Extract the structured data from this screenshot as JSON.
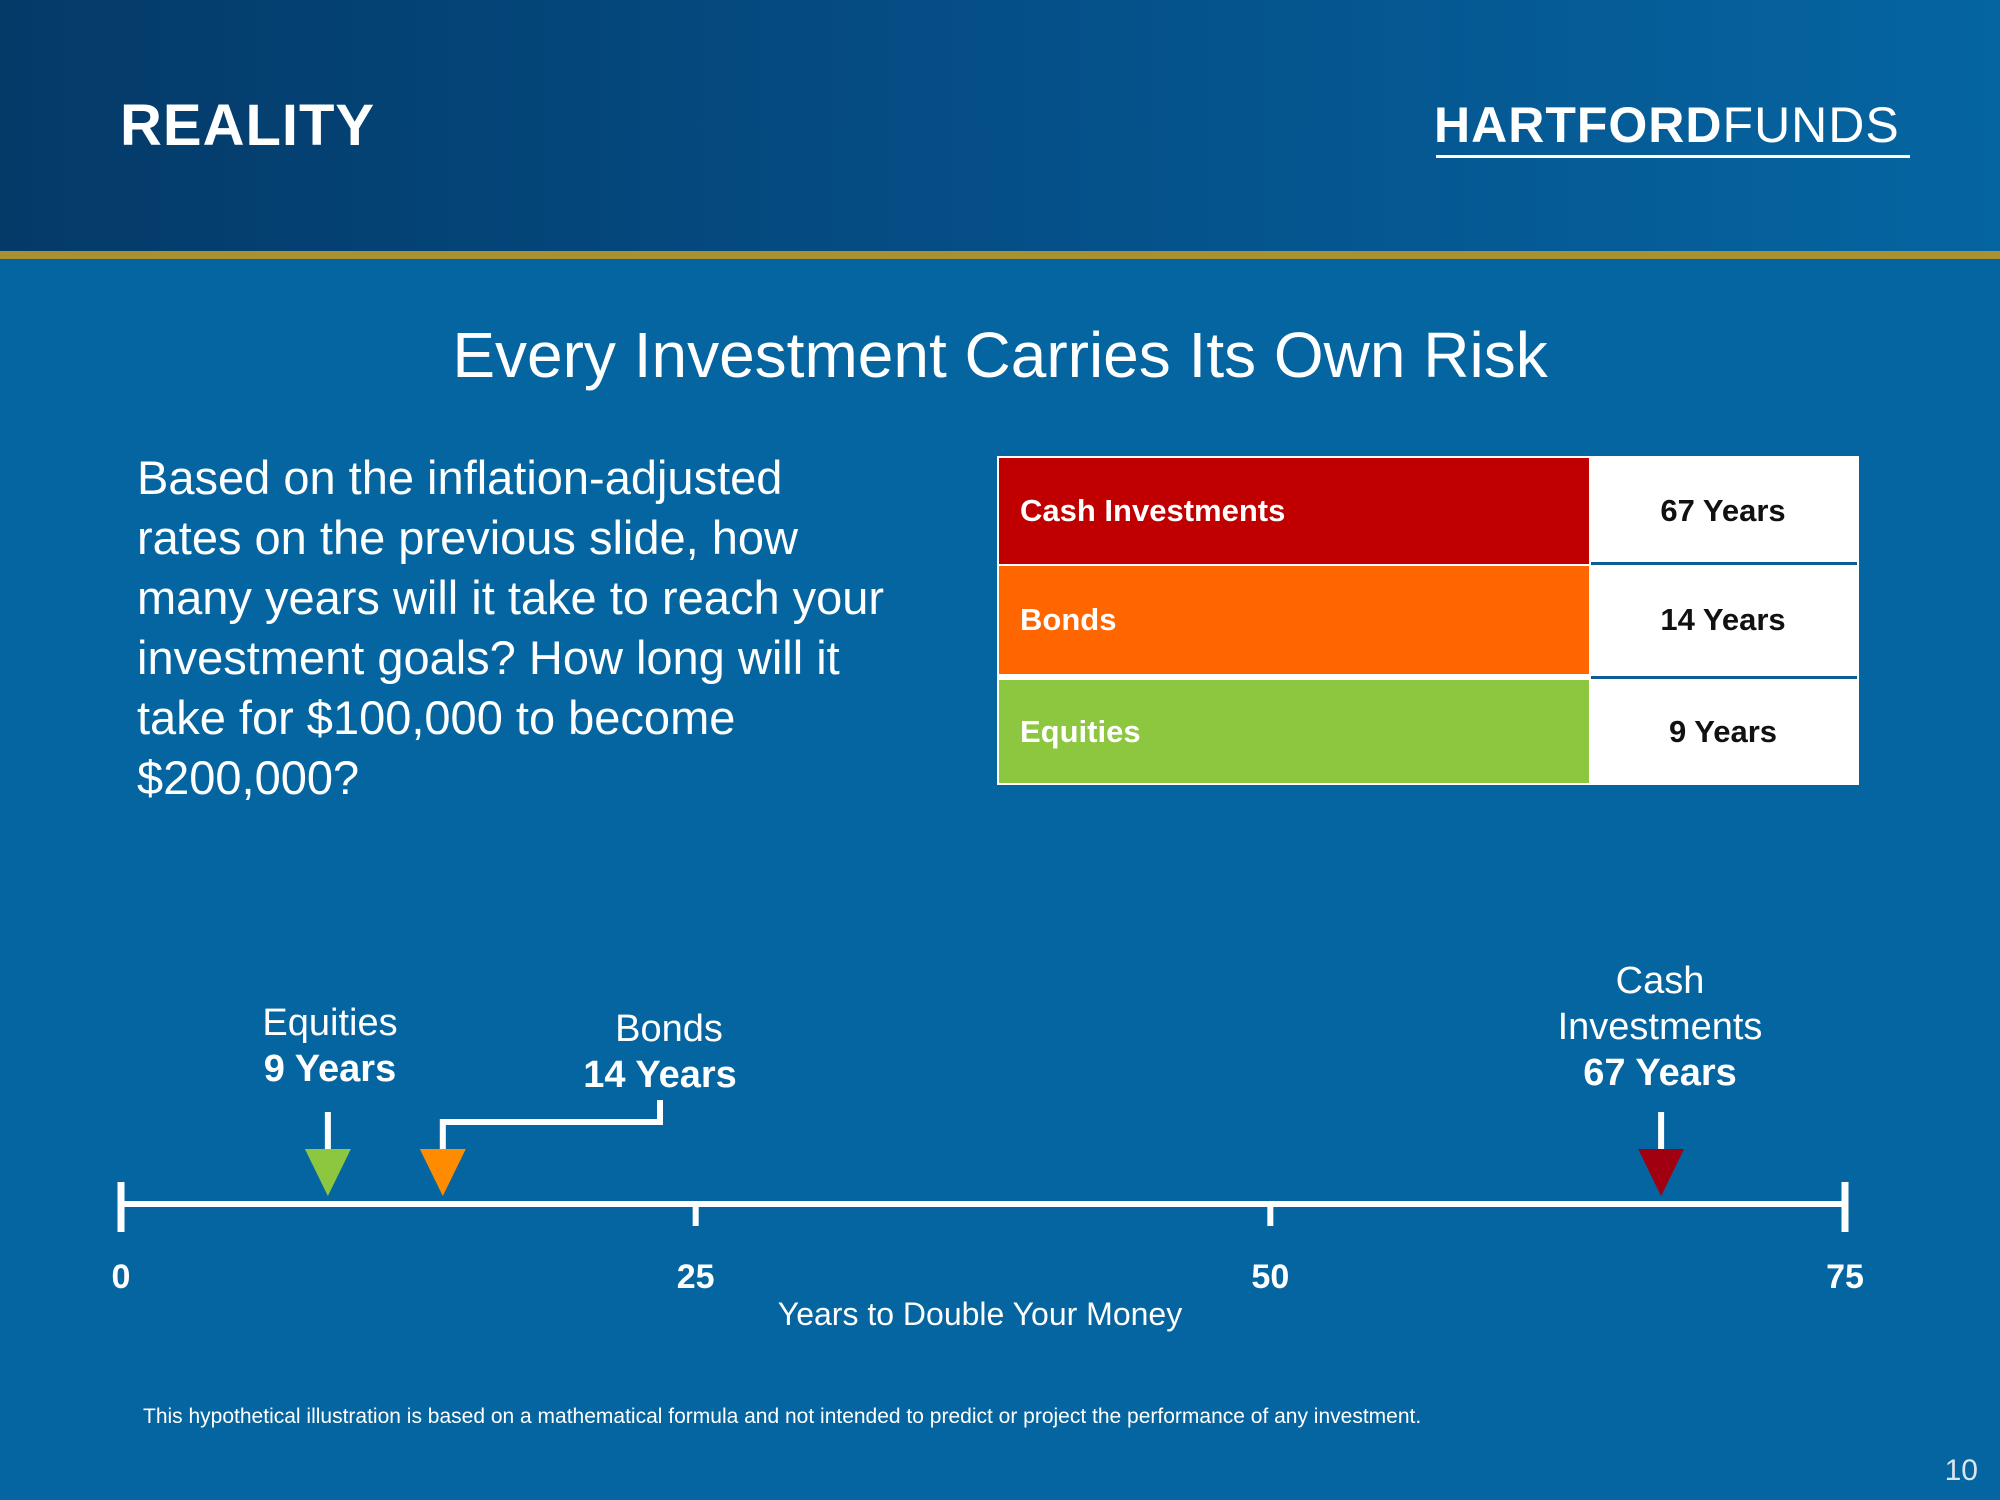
{
  "header": {
    "section_title": "REALITY",
    "logo_bold": "HARTFORD",
    "logo_light": "FUNDS"
  },
  "colors": {
    "background": "#0565a1",
    "header_rule": "#a8922f",
    "cash": "#c00000",
    "bonds": "#ff6600",
    "equities": "#8dc63f",
    "cash_marker": "#a0000f",
    "bonds_marker": "#ff8c00",
    "equities_marker": "#8dc63f"
  },
  "slide_title": "Every Investment Carries Its Own Risk",
  "question": "Based on the inflation-adjusted rates on the previous slide, how many years will it take to reach your investment goals? How long will it take for $100,000 to become $200,000?",
  "table": {
    "rows": [
      {
        "label": "Cash Investments",
        "value": "67 Years"
      },
      {
        "label": "Bonds",
        "value": "14 Years"
      },
      {
        "label": "Equities",
        "value": "9 Years"
      }
    ]
  },
  "chart_data": {
    "type": "scatter",
    "xlabel": "Years to Double Your Money",
    "xlim": [
      0,
      75
    ],
    "x_ticks": [
      "0",
      "25",
      "50",
      "75"
    ],
    "points": [
      {
        "name_line1": "Equities",
        "name_line2": "",
        "years_label": "9 Years",
        "x": 9,
        "color": "equities_marker"
      },
      {
        "name_line1": "Bonds",
        "name_line2": "",
        "years_label": "14 Years",
        "x": 14,
        "color": "bonds_marker"
      },
      {
        "name_line1": "Cash",
        "name_line2": "Investments",
        "years_label": "67 Years",
        "x": 67,
        "color": "cash_marker"
      }
    ]
  },
  "disclaimer": "This hypothetical illustration is based on a mathematical formula and not intended to predict or project the performance of any investment.",
  "page_number": "10"
}
